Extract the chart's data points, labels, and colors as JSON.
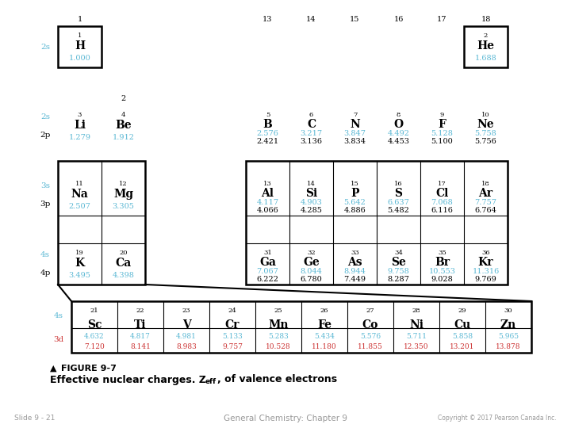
{
  "title": "FIGURE 9-7",
  "slide_text": "Slide 9 - 21",
  "center_text": "General Chemistry: Chapter 9",
  "copyright_text": "Copyright © 2017 Pearson Canada Inc.",
  "blue_color": "#5BB8D4",
  "red_color": "#CC3333",
  "black_color": "#000000",
  "elements": [
    {
      "sym": "H",
      "num": 1,
      "col": 1,
      "row": 1,
      "zs": "1.000",
      "zp": null
    },
    {
      "sym": "He",
      "num": 2,
      "col": 18,
      "row": 1,
      "zs": "1.688",
      "zp": null
    },
    {
      "sym": "Li",
      "num": 3,
      "col": 1,
      "row": 2,
      "zs": "1.279",
      "zp": null
    },
    {
      "sym": "Be",
      "num": 4,
      "col": 2,
      "row": 2,
      "zs": "1.912",
      "zp": null
    },
    {
      "sym": "B",
      "num": 5,
      "col": 13,
      "row": 2,
      "zs": "2.576",
      "zp": "2.421"
    },
    {
      "sym": "C",
      "num": 6,
      "col": 14,
      "row": 2,
      "zs": "3.217",
      "zp": "3.136"
    },
    {
      "sym": "N",
      "num": 7,
      "col": 15,
      "row": 2,
      "zs": "3.847",
      "zp": "3.834"
    },
    {
      "sym": "O",
      "num": 8,
      "col": 16,
      "row": 2,
      "zs": "4.492",
      "zp": "4.453"
    },
    {
      "sym": "F",
      "num": 9,
      "col": 17,
      "row": 2,
      "zs": "5.128",
      "zp": "5.100"
    },
    {
      "sym": "Ne",
      "num": 10,
      "col": 18,
      "row": 2,
      "zs": "5.758",
      "zp": "5.756"
    },
    {
      "sym": "Na",
      "num": 11,
      "col": 1,
      "row": 3,
      "zs": "2.507",
      "zp": null
    },
    {
      "sym": "Mg",
      "num": 12,
      "col": 2,
      "row": 3,
      "zs": "3.305",
      "zp": null
    },
    {
      "sym": "Al",
      "num": 13,
      "col": 13,
      "row": 3,
      "zs": "4.117",
      "zp": "4.066"
    },
    {
      "sym": "Si",
      "num": 14,
      "col": 14,
      "row": 3,
      "zs": "4.903",
      "zp": "4.285"
    },
    {
      "sym": "P",
      "num": 15,
      "col": 15,
      "row": 3,
      "zs": "5.642",
      "zp": "4.886"
    },
    {
      "sym": "S",
      "num": 16,
      "col": 16,
      "row": 3,
      "zs": "6.637",
      "zp": "5.482"
    },
    {
      "sym": "Cl",
      "num": 17,
      "col": 17,
      "row": 3,
      "zs": "7.068",
      "zp": "6.116"
    },
    {
      "sym": "Ar",
      "num": 18,
      "col": 18,
      "row": 3,
      "zs": "7.757",
      "zp": "6.764"
    },
    {
      "sym": "K",
      "num": 19,
      "col": 1,
      "row": 4,
      "zs": "3.495",
      "zp": null
    },
    {
      "sym": "Ca",
      "num": 20,
      "col": 2,
      "row": 4,
      "zs": "4.398",
      "zp": null
    },
    {
      "sym": "Ga",
      "num": 31,
      "col": 13,
      "row": 4,
      "zs": "7.067",
      "zp": "6.222"
    },
    {
      "sym": "Ge",
      "num": 32,
      "col": 14,
      "row": 4,
      "zs": "8.044",
      "zp": "6.780"
    },
    {
      "sym": "As",
      "num": 33,
      "col": 15,
      "row": 4,
      "zs": "8.944",
      "zp": "7.449"
    },
    {
      "sym": "Se",
      "num": 34,
      "col": 16,
      "row": 4,
      "zs": "9.758",
      "zp": "8.287"
    },
    {
      "sym": "Br",
      "num": 35,
      "col": 17,
      "row": 4,
      "zs": "10.553",
      "zp": "9.028"
    },
    {
      "sym": "Kr",
      "num": 36,
      "col": 18,
      "row": 4,
      "zs": "11.316",
      "zp": "9.769"
    }
  ],
  "transition_elements": [
    {
      "sym": "Sc",
      "num": 21,
      "zs": "4.632",
      "zd": "7.120"
    },
    {
      "sym": "Ti",
      "num": 22,
      "zs": "4.817",
      "zd": "8.141"
    },
    {
      "sym": "V",
      "num": 23,
      "zs": "4.981",
      "zd": "8.983"
    },
    {
      "sym": "Cr",
      "num": 24,
      "zs": "5.133",
      "zd": "9.757"
    },
    {
      "sym": "Mn",
      "num": 25,
      "zs": "5.283",
      "zd": "10.528"
    },
    {
      "sym": "Fe",
      "num": 26,
      "zs": "5.434",
      "zd": "11.180"
    },
    {
      "sym": "Co",
      "num": 27,
      "zs": "5.576",
      "zd": "11.855"
    },
    {
      "sym": "Ni",
      "num": 28,
      "zs": "5.711",
      "zd": "12.350"
    },
    {
      "sym": "Cu",
      "num": 29,
      "zs": "5.858",
      "zd": "13.201"
    },
    {
      "sym": "Zn",
      "num": 30,
      "zs": "5.965",
      "zd": "13.878"
    }
  ]
}
